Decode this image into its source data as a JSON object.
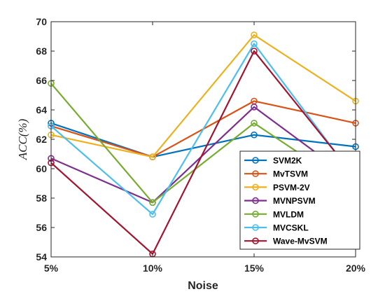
{
  "chart_data": {
    "type": "line",
    "categories": [
      "5%",
      "10%",
      "15%",
      "20%"
    ],
    "xlabel": "Noise",
    "ylabel": "ACC(%)",
    "ylim": [
      54,
      70
    ],
    "yticks": [
      54,
      56,
      58,
      60,
      62,
      64,
      66,
      68,
      70
    ],
    "grid": false,
    "legend_position": "bottom-right",
    "series": [
      {
        "name": "SVM2K",
        "color": "#0072BD",
        "values": [
          63.1,
          60.8,
          62.3,
          61.5
        ]
      },
      {
        "name": "MvTSVM",
        "color": "#D95319",
        "values": [
          62.9,
          60.8,
          64.6,
          63.1
        ]
      },
      {
        "name": "PSVM-2V",
        "color": "#EDB120",
        "values": [
          62.3,
          60.8,
          69.1,
          64.6
        ]
      },
      {
        "name": "MVNPSVM",
        "color": "#7E2F8E",
        "values": [
          60.7,
          57.7,
          64.2,
          59.1
        ]
      },
      {
        "name": "MVLDM",
        "color": "#77AC30",
        "values": [
          65.8,
          57.7,
          63.1,
          58.5
        ]
      },
      {
        "name": "MVCSKL",
        "color": "#4DBEEE",
        "values": [
          62.9,
          56.9,
          68.5,
          59.3
        ]
      },
      {
        "name": "Wave-MvSVM",
        "color": "#A2142F",
        "values": [
          60.4,
          54.2,
          68.0,
          59.4
        ]
      }
    ]
  }
}
